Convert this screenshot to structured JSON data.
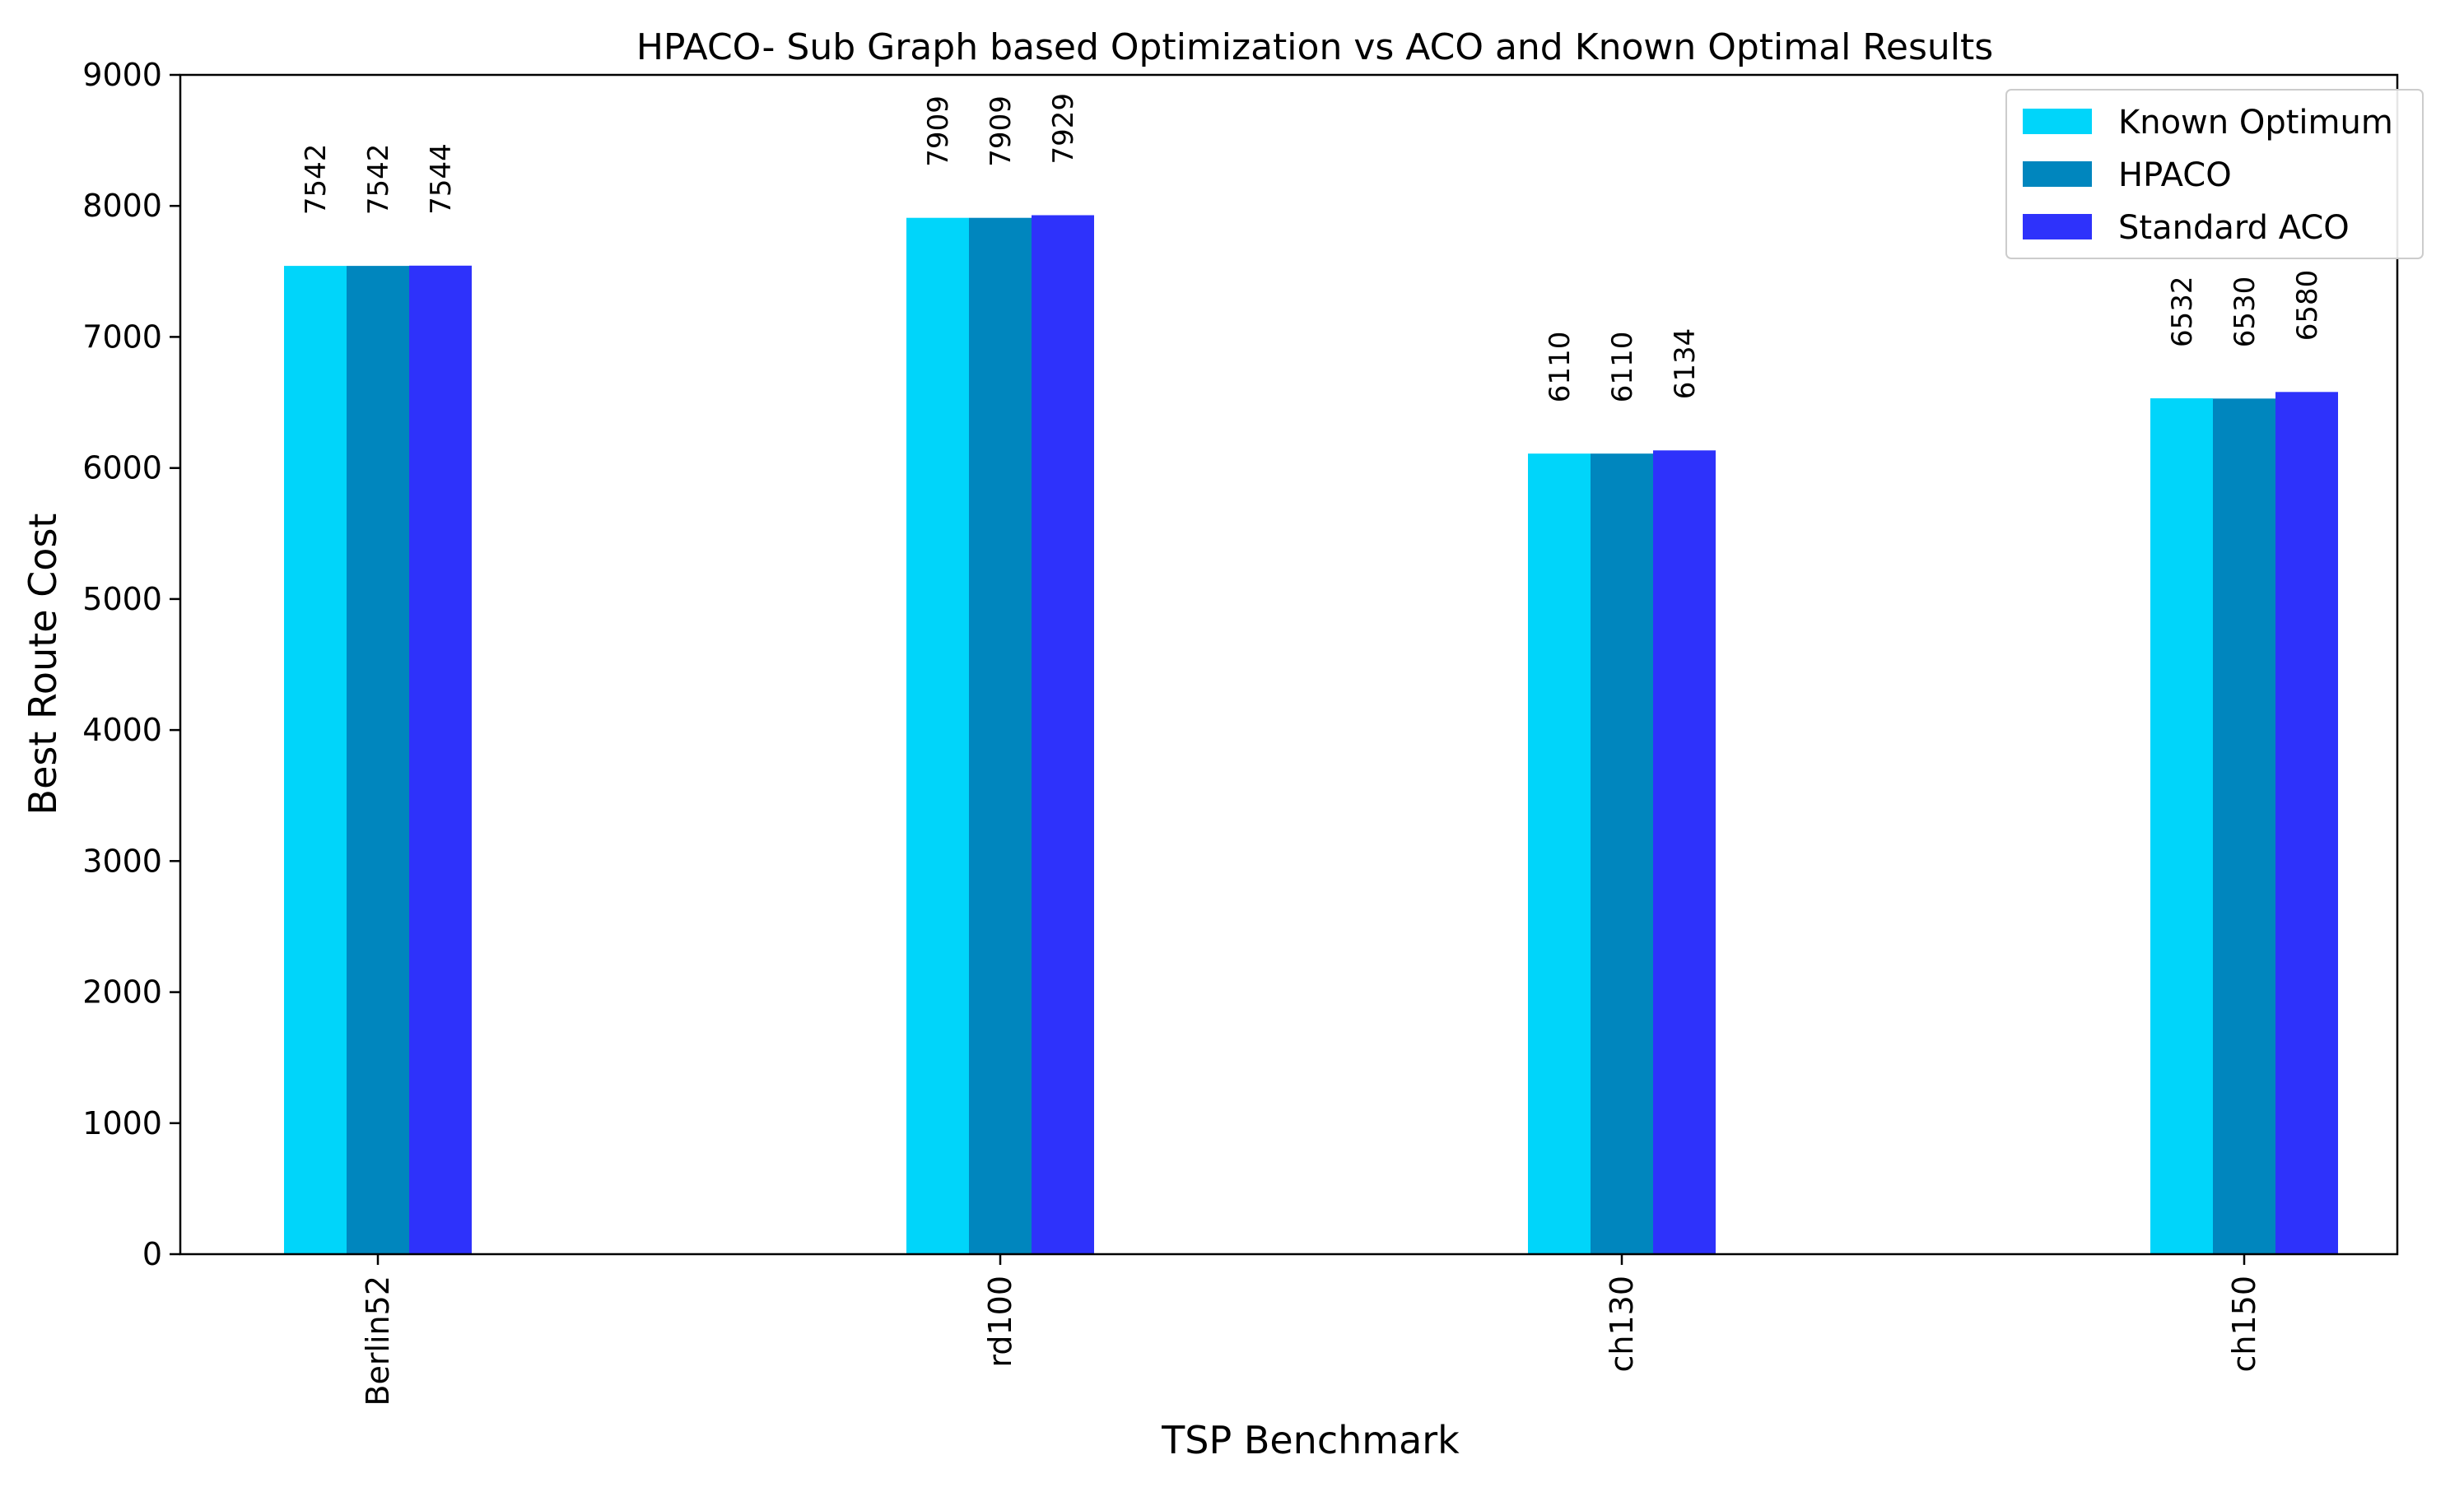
{
  "chart_data": {
    "type": "bar",
    "title": "HPACO- Sub Graph based Optimization vs ACO and Known Optimal Results",
    "xlabel": "TSP Benchmark",
    "ylabel": "Best Route Cost",
    "categories": [
      "Berlin52",
      "rd100",
      "ch130",
      "ch150"
    ],
    "series": [
      {
        "name": "Known Optimum",
        "color": "#00D5FA",
        "values": [
          7542,
          7909,
          6110,
          6532
        ]
      },
      {
        "name": "HPACO",
        "color": "#0086BE",
        "values": [
          7542,
          7909,
          6110,
          6530
        ]
      },
      {
        "name": "Standard ACO",
        "color": "#2E32FB",
        "values": [
          7544,
          7929,
          6134,
          6580
        ]
      }
    ],
    "ylim": [
      0,
      9000
    ],
    "yticks": [
      0,
      1000,
      2000,
      3000,
      4000,
      5000,
      6000,
      7000,
      8000,
      9000
    ],
    "grid": false,
    "legend_position": "top-right",
    "data_labels": true
  }
}
